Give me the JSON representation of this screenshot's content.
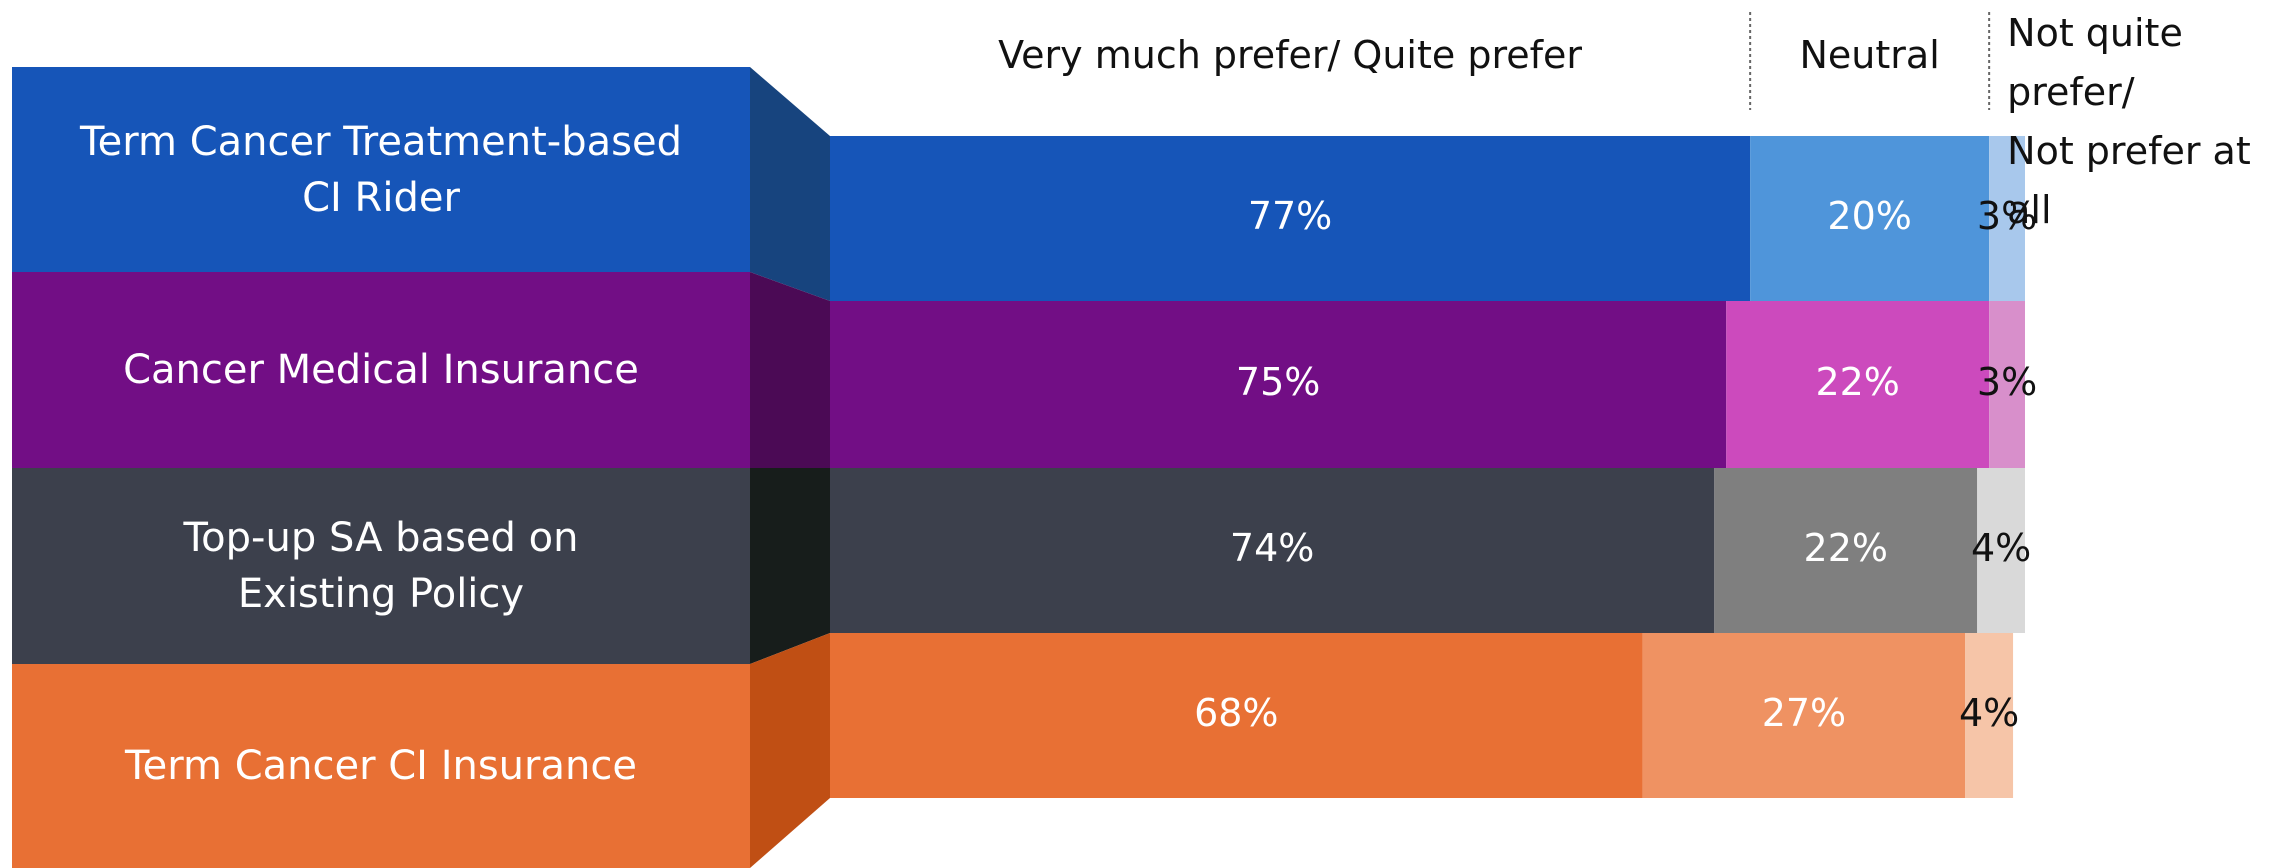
{
  "chart_data": {
    "type": "stacked-bar-horizontal",
    "categories": [
      "Term Cancer Treatment-based\nCI Rider",
      "Cancer Medical Insurance",
      "Top-up SA based on\nExisting Policy",
      "Term Cancer CI Insurance"
    ],
    "category_colors": [
      "#1655b8",
      "#720e85",
      "#3c404c",
      "#e87034"
    ],
    "side_colors": [
      "#17447e",
      "#4b0a55",
      "#171d1b",
      "#c04f14"
    ],
    "series": [
      {
        "name": "Very much prefer/ Quite prefer",
        "colors": [
          "#1655b8",
          "#720e85",
          "#3c404c",
          "#e87034"
        ],
        "label_color": "#ffffff",
        "values": [
          77,
          75,
          74,
          68
        ],
        "value_labels": [
          "77%",
          "75%",
          "74%",
          "68%"
        ]
      },
      {
        "name": "Neutral",
        "colors": [
          "#4f95da",
          "#cc4abd",
          "#7f7f7f",
          "#ef9262"
        ],
        "label_color": "#ffffff",
        "values": [
          20,
          22,
          22,
          27
        ],
        "value_labels": [
          "20%",
          "22%",
          "22%",
          "27%"
        ]
      },
      {
        "name": "Not quite prefer/\nNot prefer at all",
        "colors": [
          "#a8c8ec",
          "#d88fcb",
          "#d9d9d9",
          "#f6c5a8"
        ],
        "label_color": "#111111",
        "values": [
          3,
          3,
          4,
          4
        ],
        "value_labels": [
          "3%",
          "3%",
          "4%",
          "4%"
        ]
      }
    ],
    "xlim": [
      0,
      100
    ]
  }
}
